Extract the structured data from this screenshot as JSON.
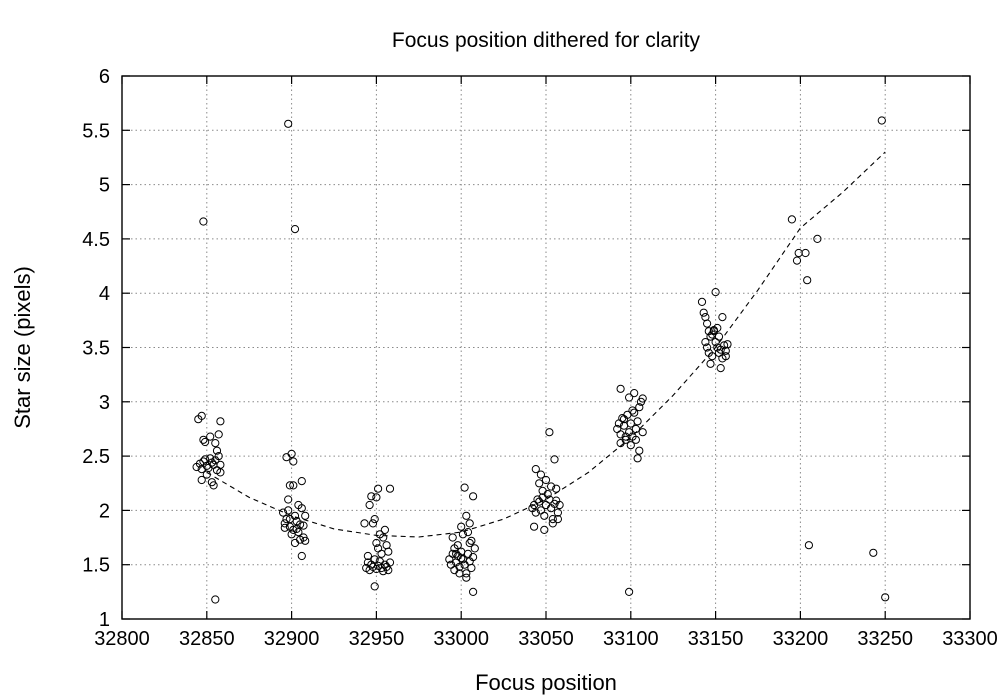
{
  "chart_data": {
    "type": "scatter",
    "title": "Focus position dithered for clarity",
    "xlabel": "Focus position",
    "ylabel": "Star size (pixels)",
    "xlim": [
      32800,
      33300
    ],
    "ylim": [
      1,
      6
    ],
    "xticks": [
      32800,
      32850,
      32900,
      32950,
      33000,
      33050,
      33100,
      33150,
      33200,
      33250,
      33300
    ],
    "yticks": [
      1,
      1.5,
      2,
      2.5,
      3,
      3.5,
      4,
      4.5,
      5,
      5.5,
      6
    ],
    "ytick_labels": [
      "1",
      "1.5",
      "2",
      "2.5",
      "3",
      "3.5",
      "4",
      "4.5",
      "5",
      "5.5",
      "6"
    ],
    "grid": true,
    "fit_curve": {
      "style": "dashed",
      "points": [
        [
          32850,
          2.35
        ],
        [
          32875,
          2.12
        ],
        [
          32900,
          1.95
        ],
        [
          32925,
          1.83
        ],
        [
          32950,
          1.77
        ],
        [
          32975,
          1.755
        ],
        [
          33000,
          1.8
        ],
        [
          33025,
          1.92
        ],
        [
          33050,
          2.1
        ],
        [
          33075,
          2.35
        ],
        [
          33100,
          2.67
        ],
        [
          33125,
          3.06
        ],
        [
          33150,
          3.5
        ],
        [
          33175,
          4.03
        ],
        [
          33200,
          4.6
        ],
        [
          33225,
          4.93
        ],
        [
          33250,
          5.3
        ]
      ]
    },
    "points": [
      [
        32848,
        4.66
      ],
      [
        32898,
        5.56
      ],
      [
        32855,
        1.18
      ],
      [
        32902,
        4.59
      ],
      [
        32844,
        2.4
      ],
      [
        32846,
        2.43
      ],
      [
        32847,
        2.38
      ],
      [
        32848,
        2.45
      ],
      [
        32849,
        2.47
      ],
      [
        32850,
        2.41
      ],
      [
        32851,
        2.39
      ],
      [
        32852,
        2.48
      ],
      [
        32853,
        2.44
      ],
      [
        32854,
        2.42
      ],
      [
        32855,
        2.46
      ],
      [
        32856,
        2.37
      ],
      [
        32857,
        2.5
      ],
      [
        32858,
        2.35
      ],
      [
        32845,
        2.84
      ],
      [
        32847,
        2.87
      ],
      [
        32848,
        2.65
      ],
      [
        32849,
        2.63
      ],
      [
        32852,
        2.68
      ],
      [
        32855,
        2.62
      ],
      [
        32857,
        2.7
      ],
      [
        32858,
        2.82
      ],
      [
        32850,
        2.33
      ],
      [
        32853,
        2.26
      ],
      [
        32854,
        2.23
      ],
      [
        32847,
        2.28
      ],
      [
        32856,
        2.55
      ],
      [
        32858,
        2.42
      ],
      [
        32896,
        1.88
      ],
      [
        32897,
        1.92
      ],
      [
        32898,
        2.0
      ],
      [
        32899,
        1.85
      ],
      [
        32900,
        1.78
      ],
      [
        32901,
        1.82
      ],
      [
        32902,
        1.95
      ],
      [
        32903,
        1.9
      ],
      [
        32904,
        1.8
      ],
      [
        32905,
        1.87
      ],
      [
        32906,
        2.02
      ],
      [
        32907,
        1.75
      ],
      [
        32908,
        1.72
      ],
      [
        32897,
        2.49
      ],
      [
        32900,
        2.52
      ],
      [
        32901,
        2.45
      ],
      [
        32899,
        2.23
      ],
      [
        32901,
        2.23
      ],
      [
        32906,
        2.27
      ],
      [
        32898,
        2.1
      ],
      [
        32906,
        1.58
      ],
      [
        32902,
        1.7
      ],
      [
        32895,
        1.98
      ],
      [
        32904,
        2.05
      ],
      [
        32908,
        1.95
      ],
      [
        32903,
        1.83
      ],
      [
        32899,
        1.92
      ],
      [
        32896,
        1.84
      ],
      [
        32905,
        1.73
      ],
      [
        32907,
        1.86
      ],
      [
        32944,
        1.47
      ],
      [
        32945,
        1.52
      ],
      [
        32946,
        1.45
      ],
      [
        32947,
        1.5
      ],
      [
        32948,
        1.48
      ],
      [
        32949,
        1.55
      ],
      [
        32950,
        1.46
      ],
      [
        32951,
        1.49
      ],
      [
        32952,
        1.53
      ],
      [
        32953,
        1.47
      ],
      [
        32954,
        1.44
      ],
      [
        32955,
        1.5
      ],
      [
        32956,
        1.48
      ],
      [
        32957,
        1.45
      ],
      [
        32958,
        1.52
      ],
      [
        32947,
        2.13
      ],
      [
        32951,
        2.2
      ],
      [
        32958,
        2.2
      ],
      [
        32950,
        2.12
      ],
      [
        32946,
        2.05
      ],
      [
        32948,
        1.88
      ],
      [
        32949,
        1.92
      ],
      [
        32952,
        1.78
      ],
      [
        32954,
        1.75
      ],
      [
        32955,
        1.82
      ],
      [
        32951,
        1.65
      ],
      [
        32953,
        1.6
      ],
      [
        32950,
        1.7
      ],
      [
        32957,
        1.62
      ],
      [
        32949,
        1.3
      ],
      [
        32945,
        1.58
      ],
      [
        32956,
        1.68
      ],
      [
        32943,
        1.88
      ],
      [
        32993,
        1.55
      ],
      [
        32994,
        1.5
      ],
      [
        32995,
        1.6
      ],
      [
        32996,
        1.45
      ],
      [
        32997,
        1.52
      ],
      [
        32998,
        1.58
      ],
      [
        32999,
        1.48
      ],
      [
        33000,
        1.62
      ],
      [
        33001,
        1.55
      ],
      [
        33002,
        1.5
      ],
      [
        33003,
        1.42
      ],
      [
        33004,
        1.6
      ],
      [
        33005,
        1.53
      ],
      [
        33006,
        1.47
      ],
      [
        33007,
        1.57
      ],
      [
        33002,
        2.21
      ],
      [
        33007,
        2.13
      ],
      [
        33003,
        1.95
      ],
      [
        33005,
        1.88
      ],
      [
        33000,
        1.85
      ],
      [
        33001,
        1.78
      ],
      [
        33004,
        1.8
      ],
      [
        33006,
        1.72
      ],
      [
        32998,
        1.68
      ],
      [
        32996,
        1.65
      ],
      [
        32995,
        1.75
      ],
      [
        33008,
        1.65
      ],
      [
        33005,
        1.7
      ],
      [
        32999,
        1.42
      ],
      [
        33007,
        1.25
      ],
      [
        33003,
        1.38
      ],
      [
        32997,
        1.6
      ],
      [
        33000,
        1.56
      ],
      [
        33042,
        2.02
      ],
      [
        33043,
        2.05
      ],
      [
        33044,
        1.98
      ],
      [
        33045,
        2.1
      ],
      [
        33046,
        2.08
      ],
      [
        33047,
        2.0
      ],
      [
        33048,
        2.12
      ],
      [
        33049,
        1.95
      ],
      [
        33050,
        2.05
      ],
      [
        33051,
        2.15
      ],
      [
        33052,
        2.1
      ],
      [
        33053,
        2.02
      ],
      [
        33054,
        1.92
      ],
      [
        33055,
        2.06
      ],
      [
        33056,
        2.09
      ],
      [
        33057,
        1.98
      ],
      [
        33058,
        2.05
      ],
      [
        33052,
        2.72
      ],
      [
        33055,
        2.47
      ],
      [
        33044,
        2.38
      ],
      [
        33047,
        2.33
      ],
      [
        33050,
        2.28
      ],
      [
        33053,
        2.22
      ],
      [
        33046,
        2.25
      ],
      [
        33056,
        2.2
      ],
      [
        33043,
        1.85
      ],
      [
        33049,
        1.82
      ],
      [
        33054,
        1.88
      ],
      [
        33057,
        1.92
      ],
      [
        33048,
        2.18
      ],
      [
        33092,
        2.75
      ],
      [
        33093,
        2.8
      ],
      [
        33094,
        2.7
      ],
      [
        33095,
        2.85
      ],
      [
        33096,
        2.78
      ],
      [
        33097,
        2.65
      ],
      [
        33098,
        2.88
      ],
      [
        33099,
        2.72
      ],
      [
        33100,
        2.8
      ],
      [
        33101,
        2.68
      ],
      [
        33102,
        2.9
      ],
      [
        33103,
        2.75
      ],
      [
        33104,
        2.82
      ],
      [
        33105,
        2.95
      ],
      [
        33106,
        3.0
      ],
      [
        33107,
        3.03
      ],
      [
        33094,
        3.12
      ],
      [
        33102,
        3.08
      ],
      [
        33099,
        3.04
      ],
      [
        33101,
        2.92
      ],
      [
        33105,
        2.55
      ],
      [
        33104,
        2.48
      ],
      [
        33094,
        2.62
      ],
      [
        33097,
        2.68
      ],
      [
        33107,
        2.72
      ],
      [
        33100,
        2.6
      ],
      [
        33096,
        2.84
      ],
      [
        33103,
        2.65
      ],
      [
        33099,
        1.25
      ],
      [
        33142,
        3.92
      ],
      [
        33143,
        3.82
      ],
      [
        33144,
        3.78
      ],
      [
        33145,
        3.72
      ],
      [
        33146,
        3.65
      ],
      [
        33147,
        3.6
      ],
      [
        33148,
        3.62
      ],
      [
        33149,
        3.66
      ],
      [
        33150,
        3.55
      ],
      [
        33151,
        3.5
      ],
      [
        33152,
        3.45
      ],
      [
        33153,
        3.48
      ],
      [
        33154,
        3.4
      ],
      [
        33155,
        3.52
      ],
      [
        33156,
        3.42
      ],
      [
        33157,
        3.53
      ],
      [
        33144,
        3.55
      ],
      [
        33145,
        3.5
      ],
      [
        33146,
        3.45
      ],
      [
        33148,
        3.42
      ],
      [
        33153,
        3.31
      ],
      [
        33150,
        4.01
      ],
      [
        33154,
        3.78
      ],
      [
        33151,
        3.68
      ],
      [
        33152,
        3.6
      ],
      [
        33147,
        3.35
      ],
      [
        33149,
        3.65
      ],
      [
        33156,
        3.47
      ],
      [
        33195,
        4.68
      ],
      [
        33199,
        4.37
      ],
      [
        33198,
        4.3
      ],
      [
        33203,
        4.37
      ],
      [
        33204,
        4.12
      ],
      [
        33210,
        4.5
      ],
      [
        33205,
        1.68
      ],
      [
        33243,
        1.61
      ],
      [
        33248,
        5.59
      ],
      [
        33250,
        1.2
      ]
    ]
  }
}
